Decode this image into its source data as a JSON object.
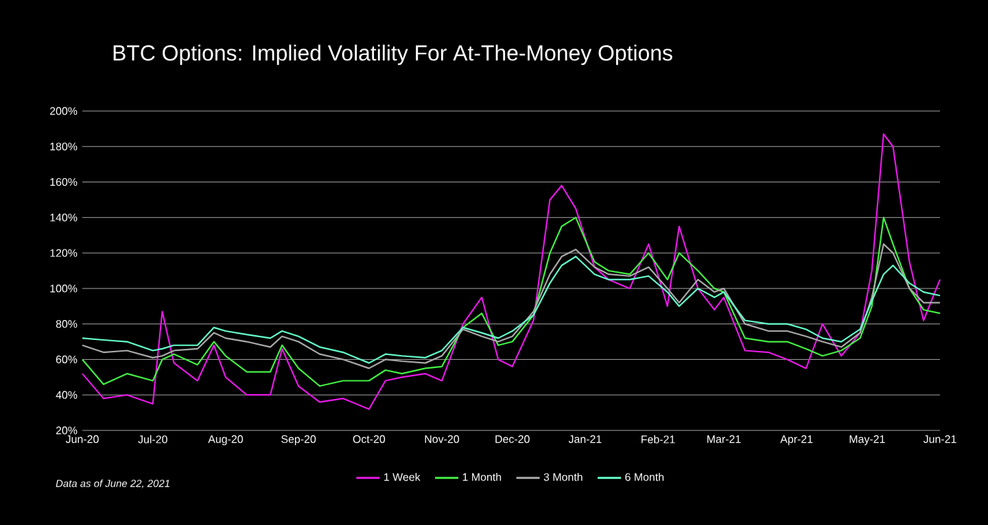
{
  "chart_data": {
    "type": "line",
    "title": "BTC Options: Implied Volatility For At-The-Money Options",
    "x": [
      "2020-06-01",
      "2020-06-10",
      "2020-06-20",
      "2020-07-01",
      "2020-07-05",
      "2020-07-10",
      "2020-07-20",
      "2020-07-27",
      "2020-08-01",
      "2020-08-10",
      "2020-08-20",
      "2020-08-25",
      "2020-09-01",
      "2020-09-10",
      "2020-09-20",
      "2020-10-01",
      "2020-10-08",
      "2020-10-15",
      "2020-10-25",
      "2020-11-01",
      "2020-11-10",
      "2020-11-18",
      "2020-11-25",
      "2020-12-01",
      "2020-12-10",
      "2020-12-17",
      "2020-12-22",
      "2020-12-28",
      "2021-01-05",
      "2021-01-11",
      "2021-01-20",
      "2021-01-28",
      "2021-02-05",
      "2021-02-10",
      "2021-02-18",
      "2021-02-25",
      "2021-03-01",
      "2021-03-10",
      "2021-03-20",
      "2021-03-28",
      "2021-04-05",
      "2021-04-12",
      "2021-04-20",
      "2021-04-28",
      "2021-05-03",
      "2021-05-08",
      "2021-05-12",
      "2021-05-19",
      "2021-05-25",
      "2021-06-01"
    ],
    "series": [
      {
        "name": "1 Week",
        "color": "#e619e6",
        "values": [
          52,
          38,
          40,
          35,
          87,
          58,
          48,
          68,
          50,
          40,
          40,
          66,
          45,
          36,
          38,
          32,
          48,
          50,
          52,
          48,
          80,
          95,
          60,
          56,
          82,
          150,
          158,
          145,
          112,
          105,
          100,
          125,
          90,
          135,
          100,
          88,
          95,
          65,
          64,
          60,
          55,
          80,
          62,
          75,
          110,
          187,
          180,
          115,
          82,
          105
        ]
      },
      {
        "name": "1 Month",
        "color": "#44ee44",
        "values": [
          60,
          46,
          52,
          48,
          60,
          63,
          57,
          70,
          62,
          53,
          53,
          68,
          55,
          45,
          48,
          48,
          54,
          52,
          55,
          56,
          78,
          86,
          68,
          70,
          85,
          120,
          135,
          140,
          115,
          110,
          108,
          120,
          105,
          120,
          110,
          100,
          98,
          72,
          70,
          70,
          66,
          62,
          65,
          72,
          90,
          140,
          125,
          100,
          88,
          86
        ]
      },
      {
        "name": "3 Month",
        "color": "#aaaaaa",
        "values": [
          68,
          64,
          65,
          61,
          62,
          65,
          66,
          75,
          72,
          70,
          67,
          73,
          70,
          63,
          60,
          55,
          60,
          59,
          58,
          62,
          77,
          73,
          70,
          73,
          87,
          108,
          118,
          122,
          112,
          108,
          107,
          112,
          100,
          92,
          105,
          98,
          100,
          80,
          76,
          76,
          73,
          70,
          67,
          75,
          95,
          125,
          120,
          100,
          92,
          92
        ]
      },
      {
        "name": "6 Month",
        "color": "#66ffcc",
        "values": [
          72,
          71,
          70,
          65,
          66,
          68,
          68,
          78,
          76,
          74,
          72,
          76,
          73,
          67,
          64,
          58,
          63,
          62,
          61,
          65,
          78,
          75,
          72,
          76,
          85,
          103,
          113,
          118,
          108,
          105,
          105,
          107,
          98,
          90,
          100,
          95,
          98,
          82,
          80,
          80,
          77,
          72,
          70,
          77,
          93,
          108,
          113,
          103,
          98,
          96
        ]
      }
    ],
    "xlim": [
      "2020-06-01",
      "2021-06-01"
    ],
    "xticks": [
      {
        "value": "2020-06-01",
        "label": "Jun-20"
      },
      {
        "value": "2020-07-01",
        "label": "Jul-20"
      },
      {
        "value": "2020-08-01",
        "label": "Aug-20"
      },
      {
        "value": "2020-09-01",
        "label": "Sep-20"
      },
      {
        "value": "2020-10-01",
        "label": "Oct-20"
      },
      {
        "value": "2020-11-01",
        "label": "Nov-20"
      },
      {
        "value": "2020-12-01",
        "label": "Dec-20"
      },
      {
        "value": "2021-01-01",
        "label": "Jan-21"
      },
      {
        "value": "2021-02-01",
        "label": "Feb-21"
      },
      {
        "value": "2021-03-01",
        "label": "Mar-21"
      },
      {
        "value": "2021-04-01",
        "label": "Apr-21"
      },
      {
        "value": "2021-05-01",
        "label": "May-21"
      },
      {
        "value": "2021-06-01",
        "label": "Jun-21"
      }
    ],
    "ylim": [
      20,
      200
    ],
    "yticks": [
      {
        "value": 20,
        "label": "20%"
      },
      {
        "value": 40,
        "label": "40%"
      },
      {
        "value": 60,
        "label": "60%"
      },
      {
        "value": 80,
        "label": "80%"
      },
      {
        "value": 100,
        "label": "100%"
      },
      {
        "value": 120,
        "label": "120%"
      },
      {
        "value": 140,
        "label": "140%"
      },
      {
        "value": 160,
        "label": "160%"
      },
      {
        "value": 180,
        "label": "180%"
      },
      {
        "value": 200,
        "label": "200%"
      }
    ],
    "grid": "y",
    "legend": "bottom",
    "annotations": [
      "Data as of June 22, 2021"
    ]
  }
}
